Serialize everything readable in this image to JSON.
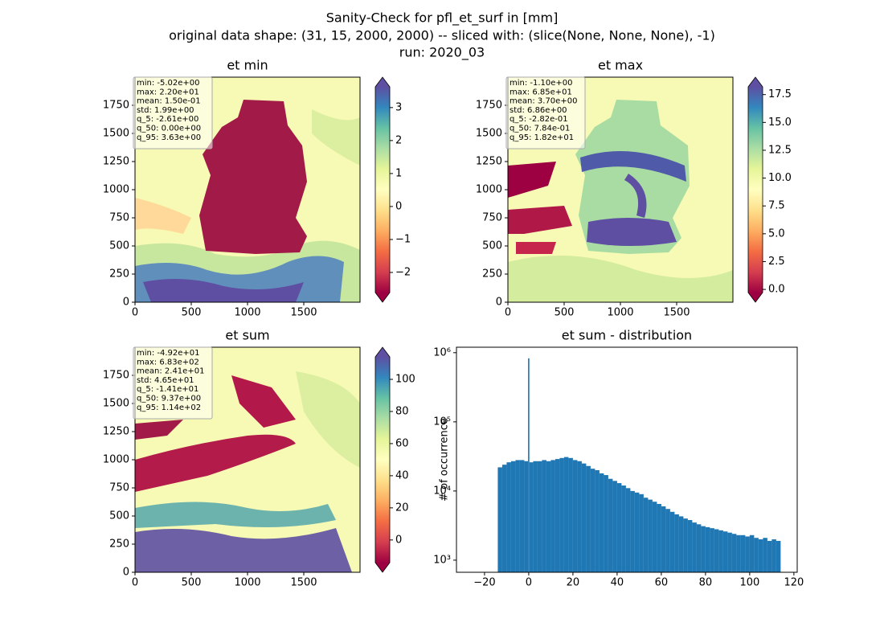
{
  "suptitle": [
    "Sanity-Check for pfl_et_surf in [mm]",
    "original data shape: (31, 15, 2000, 2000) -- sliced with: (slice(None, None, None), -1)",
    "run: 2020_03"
  ],
  "chart_data": [
    {
      "type": "heatmap",
      "title": "et min",
      "xlim": [
        0,
        2000
      ],
      "ylim": [
        0,
        2000
      ],
      "xticks": [
        0,
        500,
        1000,
        1500
      ],
      "yticks": [
        0,
        250,
        500,
        750,
        1000,
        1250,
        1500,
        1750
      ],
      "stats": [
        "min: -5.02e+00",
        "max: 2.20e+01",
        "mean: 1.50e-01",
        "std: 1.99e+00",
        "q_5: -2.61e+00",
        "q_50: 0.00e+00",
        "q_95: 3.63e+00"
      ],
      "colormap": [
        "#9e0142",
        "#d53e4f",
        "#f46d43",
        "#fdae61",
        "#fee08b",
        "#ffffbf",
        "#e6f598",
        "#abdda4",
        "#66c2a5",
        "#3288bd",
        "#5e4fa2"
      ],
      "clim": [
        -2.61,
        3.63
      ],
      "cticks": [
        {
          "value": -2,
          "label": "−2"
        },
        {
          "value": -1,
          "label": "−1"
        },
        0,
        1,
        2,
        3
      ]
    },
    {
      "type": "heatmap",
      "title": "et max",
      "xlim": [
        0,
        2000
      ],
      "ylim": [
        0,
        2000
      ],
      "xticks": [
        0,
        500,
        1000,
        1500
      ],
      "yticks": [
        0,
        250,
        500,
        750,
        1000,
        1250,
        1500,
        1750
      ],
      "stats": [
        "min: -1.10e+00",
        "max: 6.85e+01",
        "mean: 3.70e+00",
        "std: 6.86e+00",
        "q_5: -2.82e-01",
        "q_50: 7.84e-01",
        "q_95: 1.82e+01"
      ],
      "colormap": [
        "#9e0142",
        "#d53e4f",
        "#f46d43",
        "#fdae61",
        "#fee08b",
        "#ffffbf",
        "#e6f598",
        "#abdda4",
        "#66c2a5",
        "#3288bd",
        "#5e4fa2"
      ],
      "clim": [
        -0.282,
        18.2
      ],
      "cticks": [
        {
          "value": 0,
          "label": "0.0"
        },
        2.5,
        {
          "value": 5,
          "label": "5.0"
        },
        7.5,
        {
          "value": 10,
          "label": "10.0"
        },
        12.5,
        {
          "value": 15,
          "label": "15.0"
        },
        17.5
      ]
    },
    {
      "type": "heatmap",
      "title": "et sum",
      "xlim": [
        0,
        2000
      ],
      "ylim": [
        0,
        2000
      ],
      "xticks": [
        0,
        500,
        1000,
        1500
      ],
      "yticks": [
        0,
        250,
        500,
        750,
        1000,
        1250,
        1500,
        1750
      ],
      "stats": [
        "min: -4.92e+01",
        "max: 6.83e+02",
        "mean: 2.41e+01",
        "std: 4.65e+01",
        "q_5: -1.41e+01",
        "q_50: 9.37e+00",
        "q_95: 1.14e+02"
      ],
      "colormap": [
        "#9e0142",
        "#d53e4f",
        "#f46d43",
        "#fdae61",
        "#fee08b",
        "#ffffbf",
        "#e6f598",
        "#abdda4",
        "#66c2a5",
        "#3288bd",
        "#5e4fa2"
      ],
      "clim": [
        -14.1,
        114
      ],
      "cticks": [
        0,
        20,
        40,
        60,
        80,
        100
      ]
    },
    {
      "type": "histogram",
      "title": "et sum - distribution",
      "ylabel": "# of occurrence",
      "color": "#1f77b4",
      "log_y": true,
      "xlim": [
        -32.7,
        121.5
      ],
      "xticks": [
        {
          "value": -20,
          "label": "−20"
        },
        0,
        20,
        40,
        60,
        80,
        100,
        120
      ],
      "ylim": [
        668,
        1200000
      ],
      "yticks": [
        {
          "value": 1000,
          "label": "10³"
        },
        {
          "value": 10000,
          "label": "10⁴"
        },
        {
          "value": 100000,
          "label": "10⁵"
        },
        {
          "value": 1000000,
          "label": "10⁶"
        }
      ],
      "bins": [
        -14,
        -12,
        -10,
        -8,
        -6,
        -4,
        -2,
        -0.3,
        0.3,
        2,
        4,
        6,
        8,
        10,
        12,
        14,
        16,
        18,
        20,
        22,
        24,
        26,
        28,
        30,
        32,
        34,
        36,
        38,
        40,
        42,
        44,
        46,
        48,
        50,
        52,
        54,
        56,
        58,
        60,
        62,
        64,
        66,
        68,
        70,
        72,
        74,
        76,
        78,
        80,
        82,
        84,
        86,
        88,
        90,
        92,
        94,
        96,
        98,
        100,
        102,
        104,
        106,
        108,
        110,
        112,
        114
      ],
      "values": [
        22000,
        24000,
        26000,
        27000,
        28000,
        28000,
        27000,
        830000,
        26000,
        27000,
        27000,
        28000,
        27000,
        28000,
        29000,
        30000,
        31000,
        30000,
        28000,
        27000,
        25000,
        23000,
        21000,
        20000,
        18000,
        17000,
        15000,
        14000,
        13000,
        12000,
        11000,
        10000,
        9500,
        9000,
        8000,
        7500,
        7000,
        6500,
        6000,
        5500,
        5000,
        4600,
        4300,
        4000,
        3800,
        3500,
        3300,
        3100,
        3000,
        2900,
        2800,
        2700,
        2600,
        2500,
        2400,
        2300,
        2300,
        2200,
        2300,
        2100,
        2000,
        2100,
        1900,
        2000,
        1900
      ]
    }
  ]
}
